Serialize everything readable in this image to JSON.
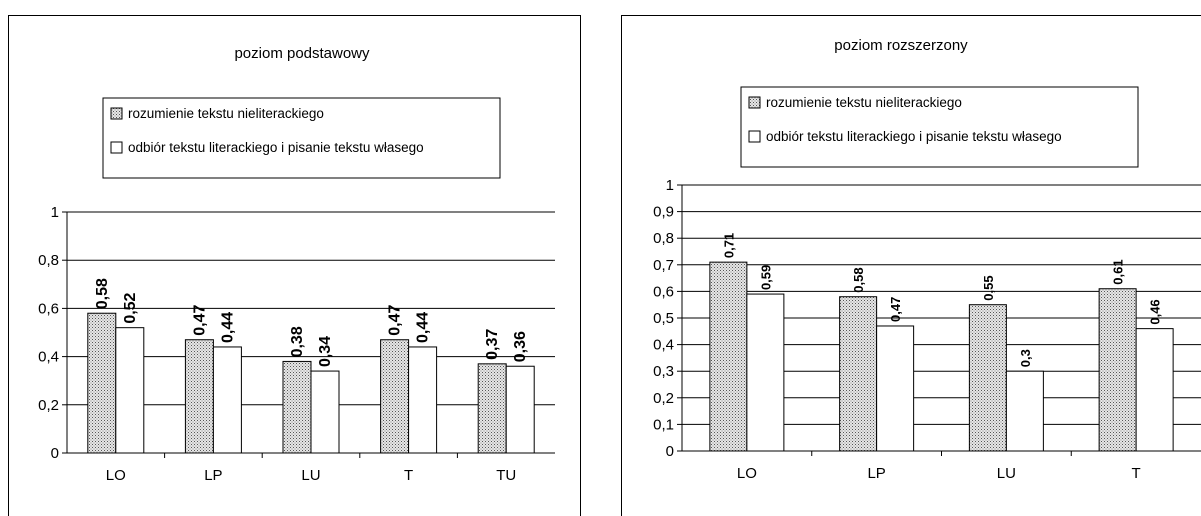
{
  "chart_data": [
    {
      "type": "bar",
      "title": "poziom podstawowy",
      "categories": [
        "LO",
        "LP",
        "LU",
        "T",
        "TU"
      ],
      "series": [
        {
          "name": "rozumienie tekstu nieliterackiego",
          "values": [
            0.58,
            0.47,
            0.38,
            0.47,
            0.37
          ],
          "labels": [
            "0,58",
            "0,47",
            "0,38",
            "0,47",
            "0,37"
          ],
          "fill": "#c8c8c8"
        },
        {
          "name": "odbiór tekstu literackiego i pisanie tekstu własego",
          "values": [
            0.52,
            0.44,
            0.34,
            0.44,
            0.36
          ],
          "labels": [
            "0,52",
            "0,44",
            "0,34",
            "0,44",
            "0,36"
          ],
          "fill": "#ffffff"
        }
      ],
      "ylim": [
        0,
        1
      ],
      "yticks": [
        "0",
        "0,2",
        "0,4",
        "0,6",
        "0,8",
        "1"
      ],
      "xlabel": "",
      "ylabel": "",
      "grid": true,
      "legend": "top"
    },
    {
      "type": "bar",
      "title": "poziom rozszerzony",
      "categories": [
        "LO",
        "LP",
        "LU",
        "T"
      ],
      "series": [
        {
          "name": "rozumienie tekstu nieliterackiego",
          "values": [
            0.71,
            0.58,
            0.55,
            0.61
          ],
          "labels": [
            "0,71",
            "0,58",
            "0,55",
            "0,61"
          ],
          "fill": "#c8c8c8"
        },
        {
          "name": "odbiór tekstu literackiego i pisanie tekstu własego",
          "values": [
            0.59,
            0.47,
            0.3,
            0.46
          ],
          "labels": [
            "0,59",
            "0,47",
            "0,3",
            "0,46"
          ],
          "fill": "#ffffff"
        }
      ],
      "ylim": [
        0,
        1
      ],
      "yticks": [
        "0",
        "0,1",
        "0,2",
        "0,3",
        "0,4",
        "0,5",
        "0,6",
        "0,7",
        "0,8",
        "0,9",
        "1"
      ],
      "xlabel": "",
      "ylabel": "",
      "grid": true,
      "legend": "top"
    }
  ]
}
